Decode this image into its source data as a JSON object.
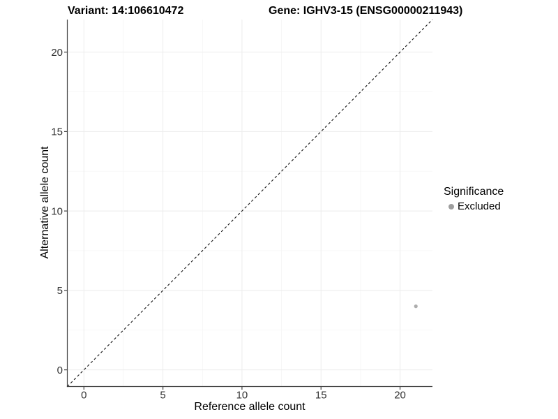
{
  "header": {
    "variant_title": "Variant: 14:106610472",
    "gene_title": "Gene: IGHV3-15 (ENSG00000211943)"
  },
  "chart_data": {
    "type": "scatter",
    "xlabel": "Reference allele count",
    "ylabel": "Alternative allele count",
    "xlim": [
      -1.05,
      22.05
    ],
    "ylim": [
      -1.05,
      22.05
    ],
    "xticks": [
      0,
      5,
      10,
      15,
      20
    ],
    "yticks": [
      0,
      5,
      10,
      15,
      20
    ],
    "xticks_minor": [
      2.5,
      7.5,
      12.5,
      17.5
    ],
    "yticks_minor": [
      2.5,
      7.5,
      12.5,
      17.5
    ],
    "grid": "major+minor",
    "points": [
      {
        "x": 21,
        "y": 4,
        "series": "Excluded"
      }
    ],
    "reference_line": {
      "slope": 1,
      "intercept": 0,
      "style": "dashed"
    },
    "legend": {
      "title": "Significance",
      "position": "right",
      "items": [
        {
          "label": "Excluded",
          "color": "#9e9e9e"
        }
      ]
    }
  },
  "style": {
    "background": "#ffffff",
    "point_color": "#adadad",
    "point_radius": 2.6,
    "grid_major_color": "#ececec",
    "grid_minor_color": "#f5f5f5",
    "axis_color": "#404040",
    "tick_label_color": "#333333",
    "dash_color": "#141414"
  }
}
